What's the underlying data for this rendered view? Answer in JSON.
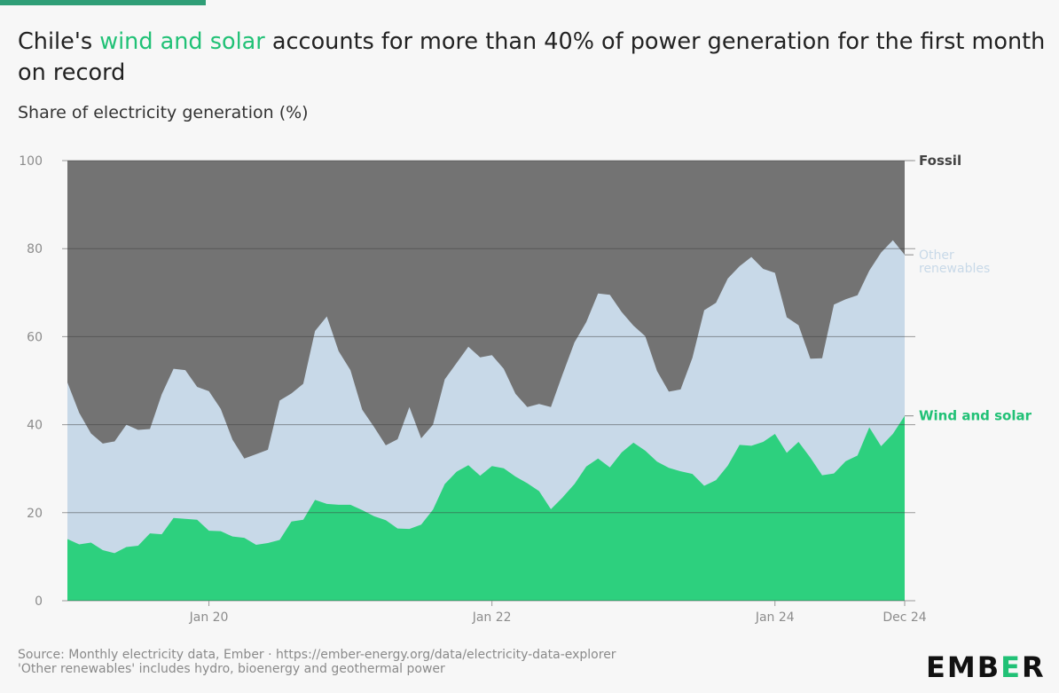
{
  "header": {
    "title_before": "Chile's ",
    "title_highlight": "wind and solar",
    "title_after": " accounts for more than 40% of power generation for the first month on record",
    "subtitle": "Share of electricity generation (%)"
  },
  "footer": {
    "source": "Source: Monthly electricity data, Ember · https://ember-energy.org/data/electricity-data-explorer",
    "note": "'Other renewables' includes hydro, bioenergy and geothermal power",
    "logo_left": "EMB",
    "logo_mid": "E",
    "logo_right": "R"
  },
  "colors": {
    "fossil": "#737373",
    "other": "#c8d9e8",
    "wind_solar": "#2dd07e",
    "highlight": "#21c176"
  },
  "chart_data": {
    "type": "area",
    "stacked": true,
    "ylim": [
      0,
      100
    ],
    "yticks": [
      0,
      20,
      40,
      60,
      80,
      100
    ],
    "xtick_labels": [
      {
        "label": "Jan 20",
        "index": 12
      },
      {
        "label": "Jan 22",
        "index": 36
      },
      {
        "label": "Jan 24",
        "index": 60
      },
      {
        "label": "Dec 24",
        "index": 71
      }
    ],
    "start": "Jan 2019",
    "end": "Dec 2024",
    "series": [
      {
        "name": "Wind and solar",
        "values": [
          14,
          12.8,
          13.2,
          11.5,
          10.8,
          12.2,
          12.5,
          15.3,
          15.1,
          18.8,
          18.6,
          18.4,
          15.9,
          15.8,
          14.6,
          14.3,
          12.7,
          13.1,
          13.8,
          18,
          18.4,
          22.9,
          22,
          21.8,
          21.8,
          20.6,
          19.2,
          18.3,
          16.4,
          16.3,
          17.3,
          20.7,
          26.5,
          29.3,
          30.8,
          28.4,
          30.6,
          30.1,
          28.2,
          26.7,
          24.9,
          20.8,
          23.5,
          26.5,
          30.5,
          32.3,
          30.3,
          33.7,
          35.9,
          34.1,
          31.6,
          30.2,
          29.4,
          28.8,
          26.1,
          27.4,
          30.7,
          35.4,
          35.2,
          36.1,
          37.9,
          33.6,
          36.1,
          32.5,
          28.5,
          28.9,
          31.7,
          33,
          39.4,
          35.1,
          37.9,
          42
        ]
      },
      {
        "name": "Other renewables",
        "values": [
          35.6,
          29.9,
          24.8,
          24.2,
          25.4,
          27.8,
          26.3,
          23.7,
          31.8,
          33.9,
          33.8,
          30.2,
          31.7,
          27.8,
          22,
          18,
          20.6,
          21.2,
          31.7,
          29.1,
          30.9,
          38.4,
          42.6,
          34.9,
          30.6,
          22.8,
          20.3,
          17,
          20.3,
          27.7,
          19.6,
          19.3,
          23.8,
          24.7,
          26.9,
          26.9,
          25.2,
          22.6,
          18.8,
          17.3,
          19.8,
          23.2,
          28,
          32.2,
          32.8,
          37.5,
          39.2,
          31.9,
          26.6,
          26,
          20.6,
          17.3,
          18.6,
          26.4,
          39.9,
          40.3,
          42.5,
          40.6,
          42.9,
          39.3,
          36.6,
          30.8,
          26.5,
          22.5,
          26.6,
          38.4,
          36.8,
          36.4,
          35.6,
          44,
          44,
          36.6
        ]
      },
      {
        "name": "Fossil"
      }
    ],
    "end_labels": [
      {
        "series": "Fossil",
        "text": "Fossil",
        "y": 100,
        "color": "#444444"
      },
      {
        "series": "Other renewables",
        "text": "Other renewables",
        "y": 78.6,
        "color": "#c8d9e8"
      },
      {
        "series": "Wind and solar",
        "text": "Wind and solar",
        "y": 42,
        "color": "#21c176"
      }
    ]
  }
}
